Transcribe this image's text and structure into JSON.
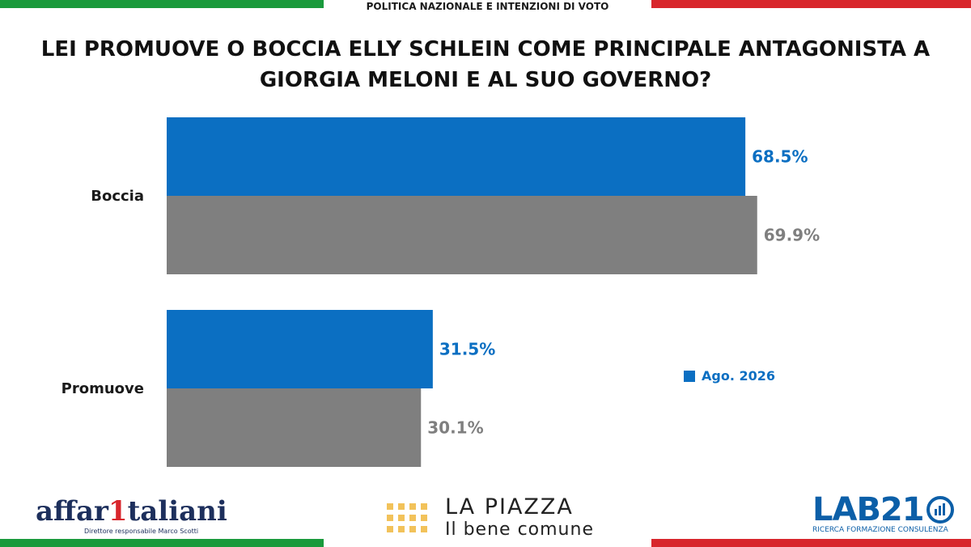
{
  "header": {
    "section_label": "POLITICA NAZIONALE E INTENZIONI DI VOTO"
  },
  "title": "LEI PROMUOVE O BOCCIA ELLY SCHLEIN COME PRINCIPALE ANTAGONISTA A GIORGIA MELONI E AL SUO GOVERNO?",
  "chart_data": {
    "type": "bar",
    "orientation": "horizontal",
    "categories": [
      "Boccia",
      "Promuove"
    ],
    "series": [
      {
        "name": "Ago. 2026",
        "values": [
          68.5,
          31.5
        ],
        "color": "#0b6fc2",
        "value_labels": [
          "68.5%",
          "31.5%"
        ]
      },
      {
        "values": [
          69.9,
          30.1
        ],
        "color": "#7f7f7f",
        "value_labels": [
          "69.9%",
          "30.1%"
        ]
      }
    ],
    "xlim": [
      0,
      100
    ],
    "grid": false,
    "legend_position": "right"
  },
  "legend": {
    "label": "Ago. 2026"
  },
  "logos": {
    "affaritaliani": {
      "name_part1": "affar",
      "name_one": "1",
      "name_part2": "taliani",
      "subtitle": "Direttore responsabile Marco Scotti"
    },
    "lapiazza": {
      "line1": "LA PIAZZA",
      "line2": "Il bene comune"
    },
    "lab21": {
      "name": "LAB21",
      "subtitle": "RICERCA FORMAZIONE CONSULENZA"
    }
  },
  "colors": {
    "blue": "#0b6fc2",
    "gray": "#7f7f7f",
    "green": "#1a9a3c",
    "red": "#d8262c"
  }
}
